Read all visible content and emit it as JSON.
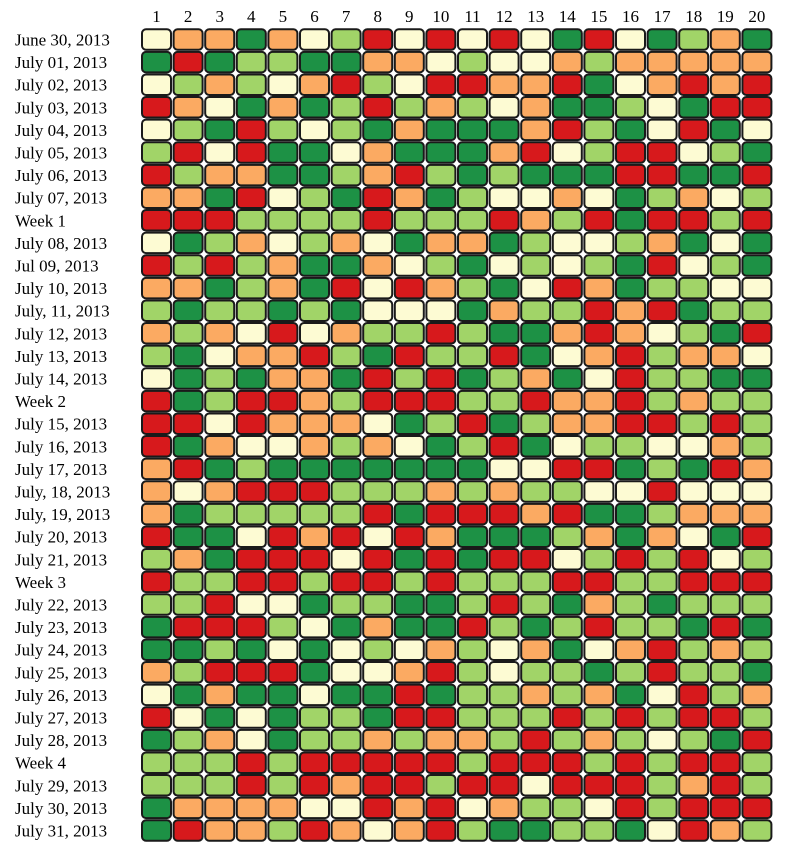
{
  "chart_data": {
    "type": "heatmap",
    "title": "",
    "xlabel": "",
    "ylabel": "",
    "columns": [
      "1",
      "2",
      "3",
      "4",
      "5",
      "6",
      "7",
      "8",
      "9",
      "10",
      "11",
      "12",
      "13",
      "14",
      "15",
      "16",
      "17",
      "18",
      "19",
      "20"
    ],
    "rows": [
      "June 30, 2013",
      "July 01, 2013",
      "July 02, 2013",
      "July 03, 2013",
      "July 04, 2013",
      "July 05, 2013",
      "July 06, 2013",
      "July 07, 2013",
      "Week 1",
      "July 08, 2013",
      "Jul 09, 2013",
      "July 10, 2013",
      "July, 11, 2013",
      "July 12, 2013",
      "July 13, 2013",
      "July 14, 2013",
      "Week 2",
      "July 15, 2013",
      "July 16, 2013",
      "July 17, 2013",
      "July, 18, 2013",
      "July, 19, 2013",
      "July 20, 2013",
      "July 21, 2013",
      "Week 3",
      "July 22, 2013",
      "July 23, 2013",
      "July 24, 2013",
      "July 25, 2013",
      "July 26, 2013",
      "July 27, 2013",
      "July 28, 2013",
      "Week 4",
      "July 29, 2013",
      "July 30, 2013",
      "July 31, 2013"
    ],
    "levels": {
      "0": "#fdfbd3",
      "1": "#fbaa62",
      "2": "#a1d468",
      "3": "#1d9145",
      "4": "#d7191c"
    },
    "values": [
      [
        0,
        1,
        1,
        3,
        1,
        0,
        2,
        4,
        0,
        4,
        0,
        4,
        0,
        3,
        4,
        0,
        3,
        2,
        1,
        3
      ],
      [
        3,
        4,
        3,
        2,
        2,
        3,
        3,
        1,
        1,
        0,
        2,
        0,
        0,
        1,
        2,
        1,
        1,
        1,
        1,
        1
      ],
      [
        0,
        2,
        1,
        2,
        0,
        1,
        4,
        2,
        0,
        4,
        4,
        1,
        1,
        4,
        3,
        0,
        1,
        4,
        1,
        4
      ],
      [
        4,
        1,
        0,
        3,
        1,
        3,
        2,
        4,
        2,
        1,
        2,
        0,
        1,
        3,
        3,
        2,
        0,
        3,
        4,
        4
      ],
      [
        0,
        2,
        3,
        4,
        2,
        0,
        2,
        3,
        1,
        3,
        3,
        3,
        1,
        4,
        2,
        3,
        0,
        4,
        3,
        0
      ],
      [
        2,
        4,
        0,
        4,
        3,
        3,
        0,
        1,
        3,
        3,
        3,
        1,
        4,
        0,
        2,
        4,
        4,
        0,
        2,
        3
      ],
      [
        4,
        2,
        1,
        1,
        3,
        3,
        2,
        1,
        4,
        2,
        3,
        2,
        3,
        3,
        3,
        4,
        4,
        3,
        3,
        4
      ],
      [
        1,
        1,
        3,
        4,
        0,
        2,
        3,
        4,
        1,
        3,
        2,
        0,
        0,
        1,
        0,
        3,
        2,
        1,
        0,
        2
      ],
      [
        4,
        4,
        4,
        2,
        2,
        2,
        2,
        4,
        2,
        2,
        2,
        4,
        1,
        2,
        4,
        3,
        4,
        4,
        2,
        4
      ],
      [
        0,
        3,
        2,
        1,
        0,
        2,
        1,
        0,
        3,
        1,
        1,
        3,
        2,
        0,
        0,
        2,
        1,
        3,
        0,
        3
      ],
      [
        4,
        2,
        4,
        2,
        1,
        3,
        3,
        1,
        0,
        2,
        3,
        0,
        2,
        0,
        2,
        3,
        4,
        0,
        2,
        3
      ],
      [
        1,
        1,
        3,
        2,
        1,
        3,
        4,
        0,
        4,
        1,
        2,
        3,
        0,
        4,
        1,
        3,
        2,
        2,
        0,
        0
      ],
      [
        2,
        3,
        2,
        2,
        3,
        2,
        3,
        0,
        0,
        0,
        3,
        1,
        2,
        2,
        4,
        1,
        4,
        3,
        2,
        2
      ],
      [
        1,
        2,
        1,
        0,
        4,
        0,
        1,
        2,
        2,
        4,
        2,
        3,
        3,
        1,
        4,
        1,
        0,
        2,
        3,
        4
      ],
      [
        2,
        3,
        0,
        1,
        1,
        4,
        2,
        3,
        4,
        2,
        2,
        4,
        3,
        0,
        1,
        4,
        2,
        1,
        1,
        0
      ],
      [
        0,
        3,
        2,
        3,
        1,
        1,
        3,
        4,
        2,
        4,
        3,
        2,
        1,
        3,
        0,
        4,
        2,
        2,
        3,
        3
      ],
      [
        4,
        3,
        2,
        4,
        4,
        1,
        2,
        4,
        4,
        4,
        2,
        2,
        4,
        1,
        1,
        4,
        2,
        1,
        2,
        2
      ],
      [
        4,
        4,
        0,
        4,
        1,
        1,
        1,
        0,
        3,
        2,
        4,
        3,
        2,
        1,
        1,
        4,
        4,
        2,
        4,
        2
      ],
      [
        4,
        3,
        1,
        0,
        0,
        1,
        2,
        1,
        0,
        3,
        2,
        4,
        3,
        0,
        2,
        2,
        0,
        0,
        1,
        2
      ],
      [
        1,
        4,
        3,
        2,
        3,
        3,
        3,
        3,
        3,
        3,
        3,
        0,
        0,
        4,
        4,
        3,
        2,
        3,
        4,
        1
      ],
      [
        1,
        0,
        1,
        4,
        4,
        4,
        2,
        2,
        2,
        1,
        2,
        1,
        2,
        2,
        0,
        0,
        4,
        0,
        0,
        0
      ],
      [
        1,
        3,
        2,
        2,
        2,
        2,
        2,
        4,
        3,
        4,
        4,
        4,
        1,
        4,
        3,
        3,
        2,
        1,
        1,
        1
      ],
      [
        4,
        3,
        3,
        0,
        4,
        1,
        4,
        0,
        4,
        1,
        3,
        3,
        3,
        2,
        1,
        3,
        1,
        0,
        3,
        4
      ],
      [
        2,
        1,
        3,
        4,
        4,
        4,
        0,
        4,
        3,
        4,
        3,
        4,
        4,
        0,
        2,
        4,
        2,
        4,
        0,
        2
      ],
      [
        4,
        2,
        2,
        4,
        4,
        2,
        4,
        4,
        2,
        4,
        2,
        2,
        2,
        4,
        4,
        2,
        2,
        4,
        4,
        4
      ],
      [
        2,
        2,
        4,
        0,
        0,
        3,
        2,
        2,
        3,
        3,
        2,
        4,
        2,
        3,
        1,
        2,
        3,
        2,
        2,
        2
      ],
      [
        3,
        4,
        4,
        4,
        2,
        0,
        3,
        1,
        3,
        3,
        4,
        2,
        3,
        2,
        4,
        2,
        2,
        3,
        4,
        3
      ],
      [
        3,
        3,
        2,
        3,
        0,
        3,
        0,
        2,
        0,
        1,
        2,
        0,
        1,
        3,
        0,
        1,
        4,
        2,
        1,
        2
      ],
      [
        1,
        2,
        4,
        4,
        4,
        3,
        0,
        0,
        1,
        4,
        2,
        0,
        2,
        2,
        3,
        2,
        4,
        2,
        2,
        3
      ],
      [
        0,
        3,
        1,
        3,
        3,
        0,
        3,
        3,
        4,
        3,
        2,
        2,
        1,
        2,
        1,
        3,
        0,
        4,
        2,
        1
      ],
      [
        4,
        0,
        3,
        0,
        3,
        2,
        2,
        3,
        4,
        4,
        2,
        2,
        2,
        4,
        2,
        4,
        2,
        4,
        4,
        2
      ],
      [
        3,
        2,
        1,
        0,
        3,
        2,
        2,
        1,
        2,
        1,
        1,
        2,
        4,
        2,
        1,
        2,
        0,
        2,
        3,
        4
      ],
      [
        2,
        2,
        2,
        4,
        2,
        4,
        4,
        4,
        4,
        4,
        2,
        4,
        4,
        4,
        2,
        4,
        2,
        4,
        4,
        2
      ],
      [
        2,
        2,
        2,
        4,
        2,
        4,
        1,
        4,
        4,
        2,
        4,
        4,
        0,
        4,
        4,
        4,
        2,
        1,
        4,
        2
      ],
      [
        3,
        1,
        1,
        1,
        1,
        0,
        0,
        4,
        1,
        4,
        0,
        1,
        2,
        2,
        0,
        4,
        2,
        4,
        4,
        4
      ],
      [
        3,
        4,
        1,
        1,
        2,
        4,
        1,
        0,
        1,
        4,
        2,
        3,
        3,
        2,
        2,
        3,
        0,
        4,
        1,
        2
      ]
    ]
  }
}
